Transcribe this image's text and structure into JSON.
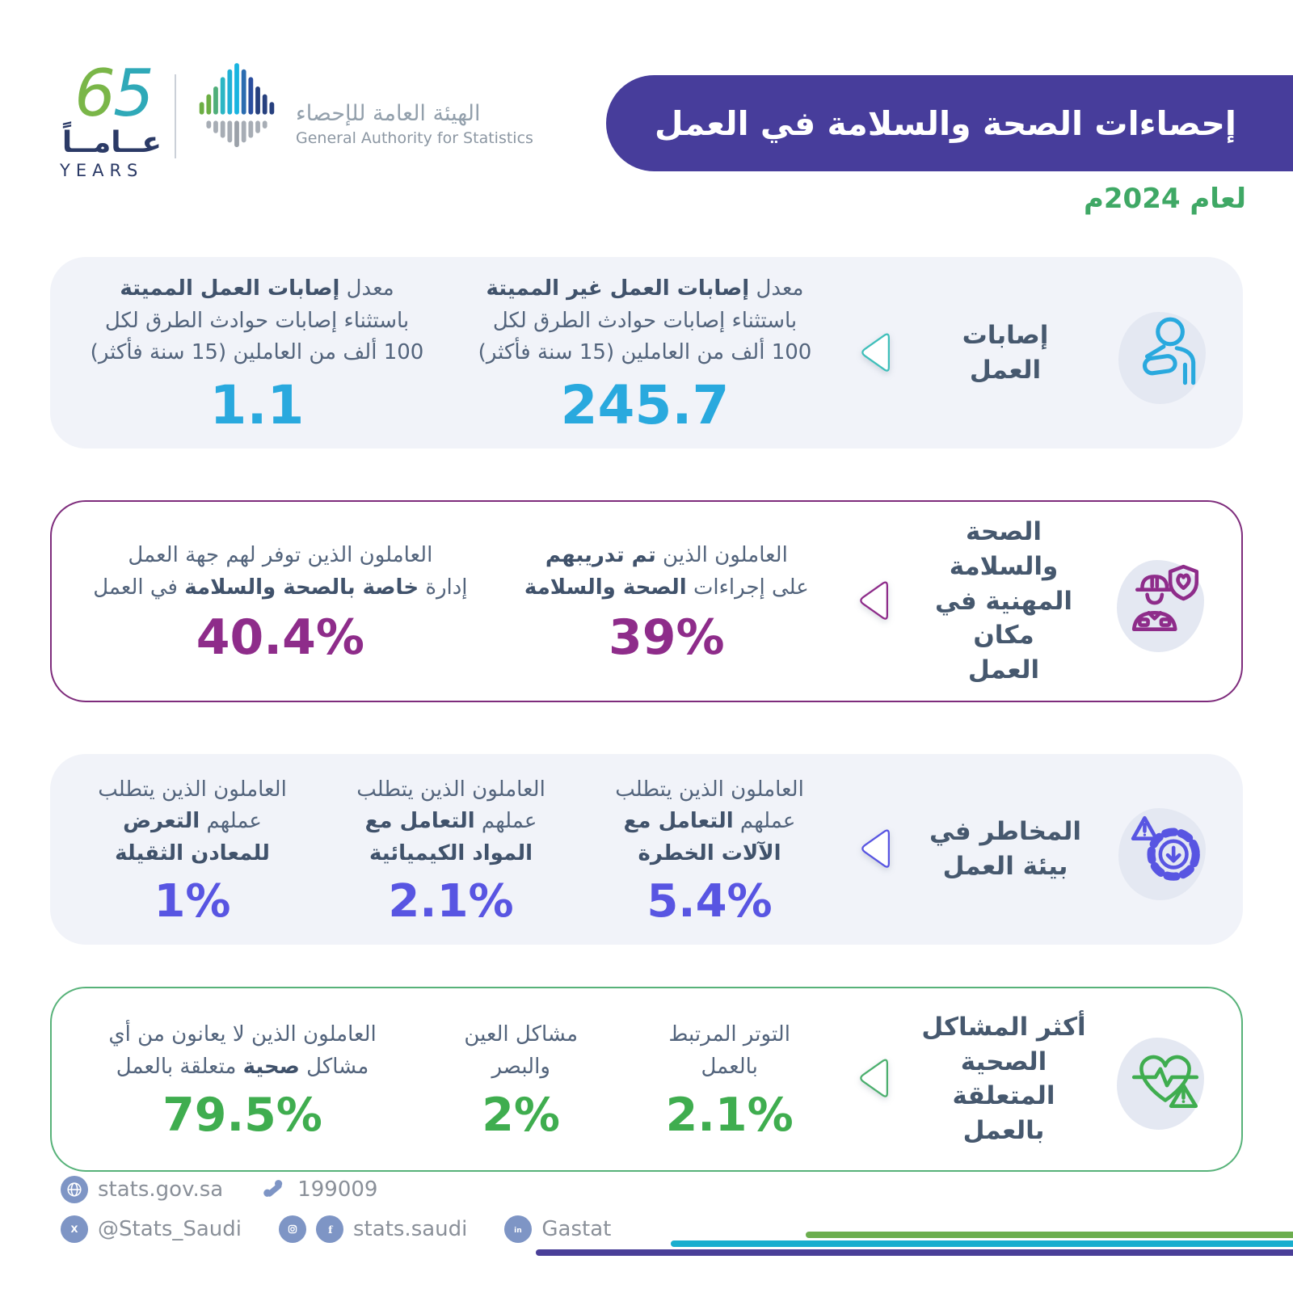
{
  "header": {
    "anniversary": {
      "number": "65",
      "arabic": "عــامــاً",
      "english": "YEARS"
    },
    "authority": {
      "name_ar": "الهيئة العامة للإحصاء",
      "name_en": "General Authority for Statistics"
    },
    "banner_title": "إحصاءات الصحة والسلامة في العمل",
    "year_label": "لعام 2024م"
  },
  "cards": [
    {
      "id": "work-injuries",
      "accent": "#29A9DE",
      "category_lines": [
        "إصابات",
        "العمل"
      ],
      "icon": "injured-worker-icon",
      "stats": [
        {
          "lines": [
            [
              {
                "t": "معدل ",
                "b": false
              },
              {
                "t": "إصابات العمل غير المميتة",
                "b": true
              }
            ],
            [
              {
                "t": "باستثناء إصابات حوادث الطرق لكل",
                "b": false
              }
            ],
            [
              {
                "t": "100 ألف من العاملين (15 سنة فأكثر)",
                "b": false
              }
            ]
          ],
          "value": "245.7"
        },
        {
          "lines": [
            [
              {
                "t": "معدل ",
                "b": false
              },
              {
                "t": "إصابات العمل المميتة",
                "b": true
              }
            ],
            [
              {
                "t": "باستثناء إصابات حوادث الطرق لكل",
                "b": false
              }
            ],
            [
              {
                "t": "100 ألف من العاملين (15 سنة فأكثر)",
                "b": false
              }
            ]
          ],
          "value": "1.1"
        }
      ]
    },
    {
      "id": "occupational-health-safety",
      "accent": "#8E2C8A",
      "category_lines": [
        "الصحة والسلامة",
        "المهنية في مكان",
        "العمل"
      ],
      "icon": "worker-shield-heart-icon",
      "stats": [
        {
          "lines": [
            [
              {
                "t": "العاملون الذين ",
                "b": false
              },
              {
                "t": "تم تدريبهم",
                "b": true
              }
            ],
            [
              {
                "t": "على إجراءات ",
                "b": false
              },
              {
                "t": "الصحة والسلامة",
                "b": true
              }
            ]
          ],
          "value": "39%"
        },
        {
          "lines": [
            [
              {
                "t": "العاملون الذين توفر لهم جهة العمل",
                "b": false
              }
            ],
            [
              {
                "t": "إدارة ",
                "b": false
              },
              {
                "t": "خاصة بالصحة والسلامة",
                "b": true
              },
              {
                "t": " في العمل",
                "b": false
              }
            ]
          ],
          "value": "40.4%"
        }
      ]
    },
    {
      "id": "work-environment-hazards",
      "accent": "#5855E2",
      "category_lines": [
        "المخاطر في",
        "بيئة العمل"
      ],
      "icon": "gear-warning-icon",
      "stats": [
        {
          "lines": [
            [
              {
                "t": "العاملون الذين يتطلب",
                "b": false
              }
            ],
            [
              {
                "t": "عملهم ",
                "b": false
              },
              {
                "t": "التعامل مع",
                "b": true
              }
            ],
            [
              {
                "t": "الآلات الخطرة",
                "b": true
              }
            ]
          ],
          "value": "5.4%"
        },
        {
          "lines": [
            [
              {
                "t": "العاملون الذين يتطلب",
                "b": false
              }
            ],
            [
              {
                "t": "عملهم ",
                "b": false
              },
              {
                "t": "التعامل مع",
                "b": true
              }
            ],
            [
              {
                "t": "المواد الكيميائية",
                "b": true
              }
            ]
          ],
          "value": "2.1%"
        },
        {
          "lines": [
            [
              {
                "t": "العاملون الذين يتطلب",
                "b": false
              }
            ],
            [
              {
                "t": "عملهم ",
                "b": false
              },
              {
                "t": "التعرض",
                "b": true
              }
            ],
            [
              {
                "t": "للمعادن الثقيلة",
                "b": true
              }
            ]
          ],
          "value": "1%"
        }
      ]
    },
    {
      "id": "work-related-health-problems",
      "accent": "#3FAD4F",
      "category_lines": [
        "أكثر المشاكل",
        "الصحية المتعلقة",
        "بالعمل"
      ],
      "icon": "heart-pulse-warning-icon",
      "stats": [
        {
          "lines": [
            [
              {
                "t": "التوتر المرتبط",
                "b": false
              }
            ],
            [
              {
                "t": "بالعمل",
                "b": false
              }
            ]
          ],
          "value": "2.1%"
        },
        {
          "lines": [
            [
              {
                "t": "مشاكل العين",
                "b": false
              }
            ],
            [
              {
                "t": "والبصر",
                "b": false
              }
            ]
          ],
          "value": "2%"
        },
        {
          "lines": [
            [
              {
                "t": "العاملون الذين لا يعانون من أي",
                "b": false
              }
            ],
            [
              {
                "t": "مشاكل ",
                "b": false
              },
              {
                "t": "صحية",
                "b": true
              },
              {
                "t": " متعلقة بالعمل",
                "b": false
              }
            ]
          ],
          "value": "79.5%"
        }
      ]
    }
  ],
  "footer": {
    "website": "stats.gov.sa",
    "phone": "199009",
    "x_handle": "@Stats_Saudi",
    "social_handle": "stats.saudi",
    "linkedin": "Gastat"
  },
  "colors": {
    "banner_purple": "#473D9B",
    "year_green": "#3FA865",
    "cyan_accent": "#29A9DE",
    "plum_accent": "#8E2C8A",
    "violet_accent": "#5855E2",
    "green_accent": "#3FAD4F",
    "slate_text": "#53647C",
    "deco_line_purple": "#4A3F98",
    "deco_line_cyan": "#19AECE",
    "deco_line_green": "#6CAE4F"
  }
}
